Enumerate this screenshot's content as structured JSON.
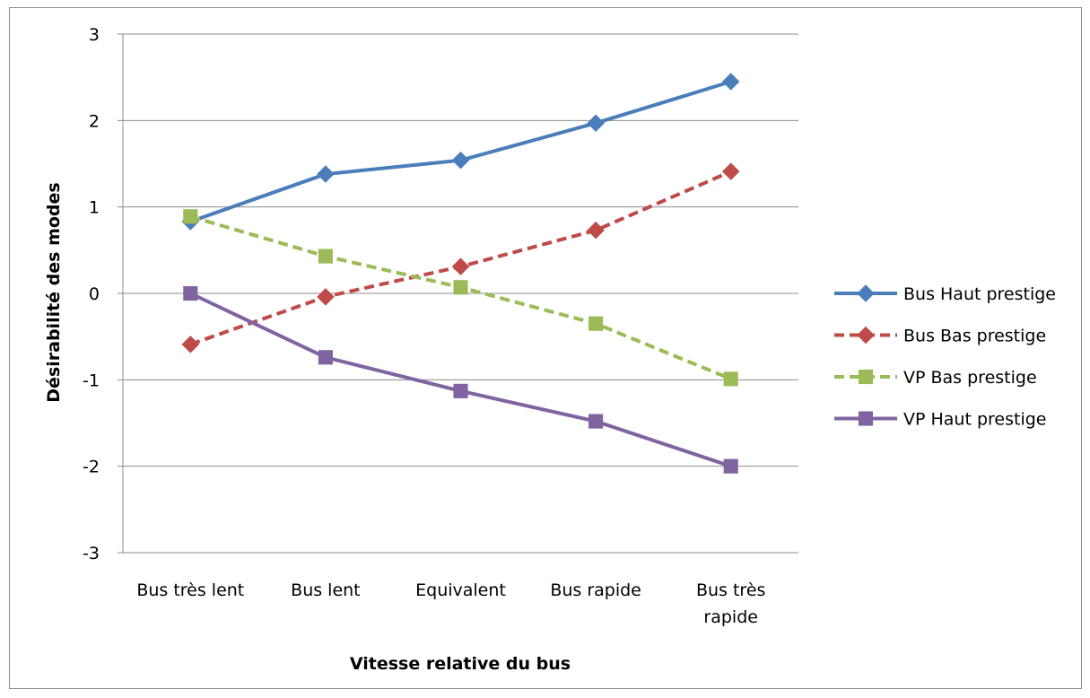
{
  "chart_data": {
    "type": "line",
    "title": "",
    "xlabel": "Vitesse relative du bus",
    "ylabel": "Désirabilité des modes",
    "ylim": [
      -3,
      3
    ],
    "yticks": [
      "3",
      "2",
      "1",
      "0",
      "-1",
      "-2",
      "-3"
    ],
    "categories": [
      "Bus très lent",
      "Bus lent",
      "Equivalent",
      "Bus rapide",
      "Bus très rapide"
    ],
    "category_lines": [
      [
        "Bus très lent"
      ],
      [
        "Bus lent"
      ],
      [
        "Equivalent"
      ],
      [
        "Bus rapide"
      ],
      [
        "Bus très",
        "rapide"
      ]
    ],
    "grid": "horizontal",
    "legend_position": "right",
    "series": [
      {
        "name": "Bus Haut prestige",
        "values": [
          0.83,
          1.38,
          1.54,
          1.97,
          2.45
        ],
        "color": "#4a7ebb",
        "dash": "solid",
        "marker": "diamond"
      },
      {
        "name": "Bus Bas prestige",
        "values": [
          -0.59,
          -0.04,
          0.31,
          0.73,
          1.41
        ],
        "color": "#be4b48",
        "dash": "dashed",
        "marker": "diamond"
      },
      {
        "name": "VP Bas prestige",
        "values": [
          0.89,
          0.43,
          0.07,
          -0.35,
          -0.99
        ],
        "color": "#9bbb59",
        "dash": "dashed",
        "marker": "square"
      },
      {
        "name": "VP Haut prestige",
        "values": [
          0.0,
          -0.74,
          -1.13,
          -1.48,
          -2.0
        ],
        "color": "#8064a2",
        "dash": "solid",
        "marker": "square"
      }
    ]
  }
}
